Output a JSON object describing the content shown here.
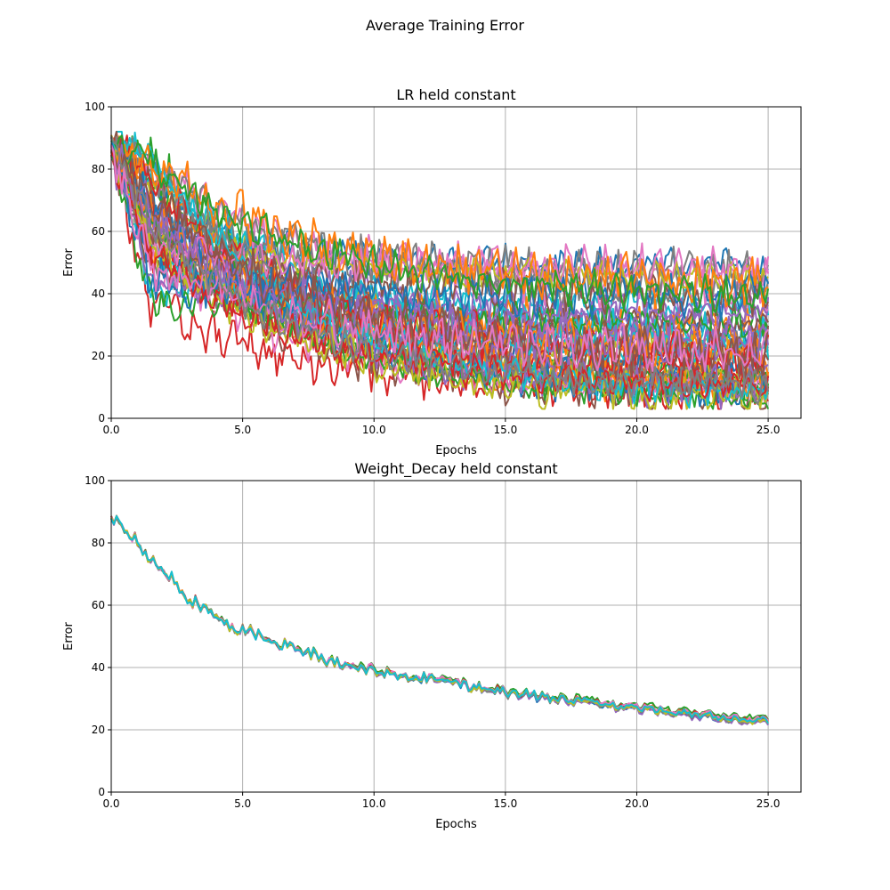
{
  "figure": {
    "suptitle": "Average Training Error"
  },
  "chart_data": [
    {
      "type": "line",
      "title": "LR held constant",
      "xlabel": "Epochs",
      "ylabel": "Error",
      "xlim": [
        0,
        26.25
      ],
      "ylim": [
        0,
        100
      ],
      "xticks": [
        "0.0",
        "5.0",
        "10.0",
        "15.0",
        "20.0",
        "25.0"
      ],
      "yticks": [
        "0",
        "20",
        "40",
        "60",
        "80",
        "100"
      ],
      "grid": true,
      "num_series": 48,
      "points_per_series": 251,
      "x_range": [
        0,
        25
      ],
      "start_value_range": [
        84,
        91
      ],
      "end_value_range": [
        5,
        50
      ],
      "dip_by_epoch_1_5_range": [
        36,
        85
      ],
      "noise_amplitude": 6,
      "note": "48 noisy descending runs; final error spread roughly 5–50"
    },
    {
      "type": "line",
      "title": "Weight_Decay held constant",
      "xlabel": "Epochs",
      "ylabel": "Error",
      "xlim": [
        0,
        26.25
      ],
      "ylim": [
        0,
        100
      ],
      "xticks": [
        "0.0",
        "5.0",
        "10.0",
        "15.0",
        "20.0",
        "25.0"
      ],
      "yticks": [
        "0",
        "20",
        "40",
        "60",
        "80",
        "100"
      ],
      "grid": true,
      "num_series": 10,
      "points_per_series": 251,
      "shared_curve": {
        "x": [
          0,
          1,
          2,
          3,
          4,
          5,
          6,
          7,
          8,
          9,
          10,
          11,
          12,
          13,
          14,
          15,
          16,
          17,
          18,
          19,
          20,
          21,
          22,
          23,
          24,
          25
        ],
        "y": [
          89,
          80,
          71,
          62,
          56,
          52,
          49,
          46,
          43,
          41,
          39,
          37.5,
          36.5,
          35,
          33.5,
          32,
          31,
          30,
          29,
          28,
          27,
          26,
          25,
          24,
          23,
          23
        ]
      },
      "series_spread": 2.5,
      "note": "10 nearly overlapping runs following a shared zig-zag descent"
    }
  ],
  "palette": [
    "#1f77b4",
    "#ff7f0e",
    "#2ca02c",
    "#d62728",
    "#9467bd",
    "#8c564b",
    "#e377c2",
    "#7f7f7f",
    "#bcbd22",
    "#17becf"
  ]
}
